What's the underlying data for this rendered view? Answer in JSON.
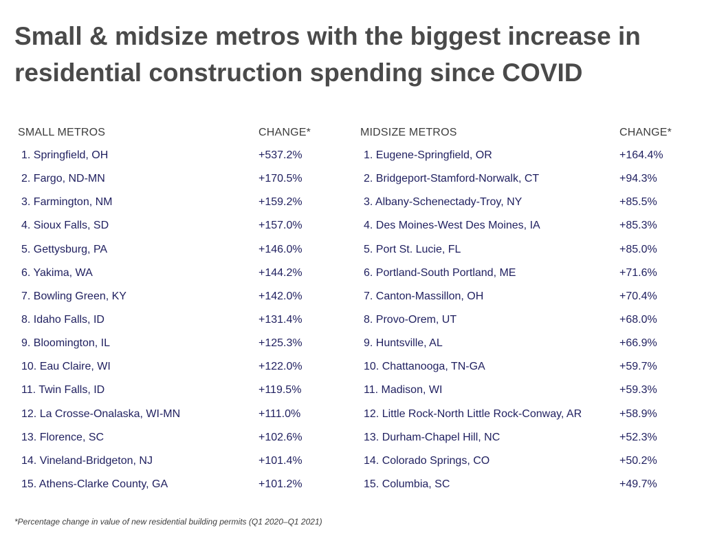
{
  "title": "Small & midsize metros with the biggest increase in residential construction spending since COVID",
  "footnote": "*Percentage change in value of new residential building permits (Q1 2020–Q1 2021)",
  "colors": {
    "title": "#4a4a4a",
    "row_text": "#1f1f5f",
    "header_text": "#3d3d3d"
  },
  "chart_data": [
    {
      "type": "table",
      "columns": [
        "SMALL METROS",
        "CHANGE*"
      ],
      "rows": [
        [
          "1. Springfield, OH",
          "+537.2%"
        ],
        [
          "2. Fargo, ND-MN",
          "+170.5%"
        ],
        [
          "3. Farmington, NM",
          "+159.2%"
        ],
        [
          "4. Sioux Falls, SD",
          "+157.0%"
        ],
        [
          "5. Gettysburg, PA",
          "+146.0%"
        ],
        [
          "6. Yakima, WA",
          "+144.2%"
        ],
        [
          "7. Bowling Green, KY",
          "+142.0%"
        ],
        [
          "8. Idaho Falls, ID",
          "+131.4%"
        ],
        [
          "9. Bloomington, IL",
          "+125.3%"
        ],
        [
          "10. Eau Claire, WI",
          "+122.0%"
        ],
        [
          "11. Twin Falls, ID",
          "+119.5%"
        ],
        [
          "12. La Crosse-Onalaska, WI-MN",
          "+111.0%"
        ],
        [
          "13. Florence, SC",
          "+102.6%"
        ],
        [
          "14. Vineland-Bridgeton, NJ",
          "+101.4%"
        ],
        [
          "15. Athens-Clarke County, GA",
          "+101.2%"
        ]
      ]
    },
    {
      "type": "table",
      "columns": [
        "MIDSIZE METROS",
        "CHANGE*"
      ],
      "rows": [
        [
          "1. Eugene-Springfield, OR",
          "+164.4%"
        ],
        [
          "2. Bridgeport-Stamford-Norwalk, CT",
          "+94.3%"
        ],
        [
          "3. Albany-Schenectady-Troy, NY",
          "+85.5%"
        ],
        [
          "4. Des Moines-West Des Moines, IA",
          "+85.3%"
        ],
        [
          "5. Port St. Lucie, FL",
          "+85.0%"
        ],
        [
          "6. Portland-South Portland, ME",
          "+71.6%"
        ],
        [
          "7. Canton-Massillon, OH",
          "+70.4%"
        ],
        [
          "8. Provo-Orem, UT",
          "+68.0%"
        ],
        [
          "9. Huntsville, AL",
          "+66.9%"
        ],
        [
          "10. Chattanooga, TN-GA",
          "+59.7%"
        ],
        [
          "11. Madison, WI",
          "+59.3%"
        ],
        [
          "12. Little Rock-North Little Rock-Conway, AR",
          "+58.9%"
        ],
        [
          "13. Durham-Chapel Hill, NC",
          "+52.3%"
        ],
        [
          "14. Colorado Springs, CO",
          "+50.2%"
        ],
        [
          "15. Columbia, SC",
          "+49.7%"
        ]
      ]
    }
  ]
}
